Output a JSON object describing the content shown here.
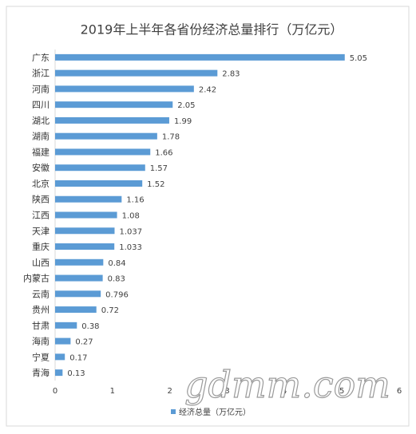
{
  "chart_data": {
    "type": "bar",
    "orientation": "horizontal",
    "title": "2019年上半年各省份经济总量排行（万亿元）",
    "categories": [
      "广东",
      "浙江",
      "河南",
      "四川",
      "湖北",
      "湖南",
      "福建",
      "安徽",
      "北京",
      "陕西",
      "江西",
      "天津",
      "重庆",
      "山西",
      "内蒙古",
      "云南",
      "贵州",
      "甘肃",
      "海南",
      "宁夏",
      "青海"
    ],
    "series": [
      {
        "name": "经济总量（万亿元）",
        "color": "#5b9bd5",
        "values": [
          5.05,
          2.83,
          2.42,
          2.05,
          1.99,
          1.78,
          1.66,
          1.57,
          1.52,
          1.16,
          1.08,
          1.037,
          1.033,
          0.84,
          0.83,
          0.796,
          0.72,
          0.38,
          0.27,
          0.17,
          0.13
        ]
      }
    ],
    "xlim": [
      0,
      6
    ],
    "xticks": [
      0,
      1,
      2,
      3,
      4,
      5,
      6
    ],
    "grid": false,
    "legend": "bottom",
    "watermark": "gdmm.com"
  }
}
